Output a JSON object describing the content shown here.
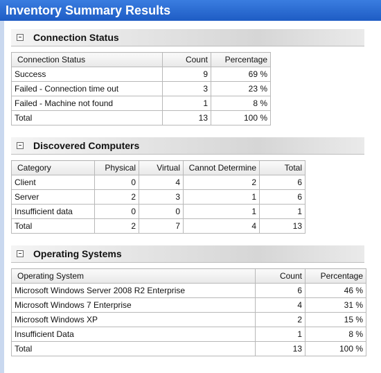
{
  "title": "Inventory Summary Results",
  "sections": [
    {
      "title": "Connection Status",
      "table": {
        "header": [
          "Connection Status",
          "Count",
          "Percentage"
        ],
        "rows": [
          [
            "Success",
            "9",
            "69 %"
          ],
          [
            "Failed - Connection time out",
            "3",
            "23 %"
          ],
          [
            "Failed - Machine not found",
            "1",
            "8 %"
          ],
          [
            "Total",
            "13",
            "100 %"
          ]
        ]
      }
    },
    {
      "title": "Discovered Computers",
      "table": {
        "header": [
          "Category",
          "Physical",
          "Virtual",
          "Cannot Determine",
          "Total"
        ],
        "rows": [
          [
            "Client",
            "0",
            "4",
            "2",
            "6"
          ],
          [
            "Server",
            "2",
            "3",
            "1",
            "6"
          ],
          [
            "Insufficient data",
            "0",
            "0",
            "1",
            "1"
          ],
          [
            "Total",
            "2",
            "7",
            "4",
            "13"
          ]
        ]
      }
    },
    {
      "title": "Operating Systems",
      "table": {
        "header": [
          "Operating System",
          "Count",
          "Percentage"
        ],
        "rows": [
          [
            "Microsoft Windows Server 2008 R2 Enterprise",
            "6",
            "46 %"
          ],
          [
            "Microsoft Windows 7 Enterprise",
            "4",
            "31 %"
          ],
          [
            "Microsoft Windows XP",
            "2",
            "15 %"
          ],
          [
            "Insufficient Data",
            "1",
            "8 %"
          ],
          [
            "Total",
            "13",
            "100 %"
          ]
        ]
      }
    }
  ]
}
